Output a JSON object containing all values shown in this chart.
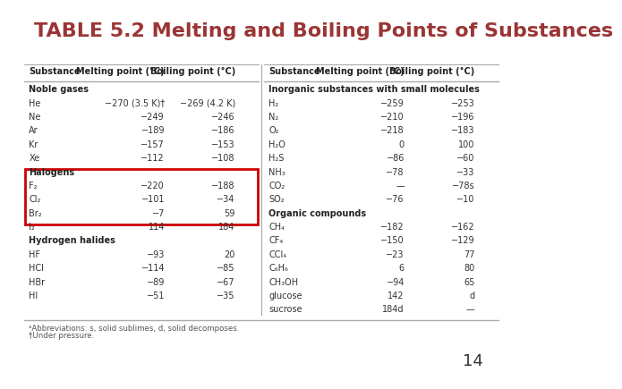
{
  "title": "TABLE 5.2 Melting and Boiling Points of Substances",
  "title_color": "#9b3535",
  "title_fontsize": 16,
  "page_number": "14",
  "footnote1": "ᵃAbbreviations: s, solid sublimes, d, solid decomposes.",
  "footnote2": "†Under pressure.",
  "left_table": {
    "headers": [
      "Substance",
      "Melting point (°C)",
      "Boiling point (°C)"
    ],
    "sections": [
      {
        "name": "Noble gases",
        "rows": [
          [
            "He",
            "−270 (3.5 K)†",
            "−269 (4.2 K)"
          ],
          [
            "Ne",
            "−249",
            "−246"
          ],
          [
            "Ar",
            "−189",
            "−186"
          ],
          [
            "Kr",
            "−157",
            "−153"
          ],
          [
            "Xe",
            "−112",
            "−108"
          ]
        ],
        "highlight": false
      },
      {
        "name": "Halogens",
        "rows": [
          [
            "F₂",
            "−220",
            "−188"
          ],
          [
            "Cl₂",
            "−101",
            "−34"
          ],
          [
            "Br₂",
            "−7",
            "59"
          ],
          [
            "I₂",
            "114",
            "184"
          ]
        ],
        "highlight": true
      },
      {
        "name": "Hydrogen halides",
        "rows": [
          [
            "HF",
            "−93",
            "20"
          ],
          [
            "HCl",
            "−114",
            "−85"
          ],
          [
            "HBr",
            "−89",
            "−67"
          ],
          [
            "HI",
            "−51",
            "−35"
          ]
        ],
        "highlight": false
      }
    ]
  },
  "right_table": {
    "headers": [
      "Substance",
      "Melting point (°C)",
      "Boiling point (°C)"
    ],
    "sections": [
      {
        "name": "Inorganic substances with small molecules",
        "rows": [
          [
            "H₂",
            "−259",
            "−253"
          ],
          [
            "N₂",
            "−210",
            "−196"
          ],
          [
            "O₂",
            "−218",
            "−183"
          ],
          [
            "H₂O",
            "0",
            "100"
          ],
          [
            "H₂S",
            "−86",
            "−60"
          ],
          [
            "NH₃",
            "−78",
            "−33"
          ],
          [
            "CO₂",
            "—",
            "−78s"
          ],
          [
            "SO₂",
            "−76",
            "−10"
          ]
        ],
        "highlight": false
      },
      {
        "name": "Organic compounds",
        "rows": [
          [
            "CH₄",
            "−182",
            "−162"
          ],
          [
            "CF₄",
            "−150",
            "−129"
          ],
          [
            "CCl₄",
            "−23",
            "77"
          ],
          [
            "C₆H₆",
            "6",
            "80"
          ],
          [
            "CH₃OH",
            "−94",
            "65"
          ],
          [
            "glucose",
            "142",
            "d"
          ],
          [
            "sucrose",
            "184d",
            "—"
          ]
        ],
        "highlight": false
      }
    ]
  },
  "background_color": "#ffffff",
  "highlight_color": "#cc0000",
  "text_color": "#333333",
  "header_color": "#222222",
  "line_color": "#aaaaaa"
}
